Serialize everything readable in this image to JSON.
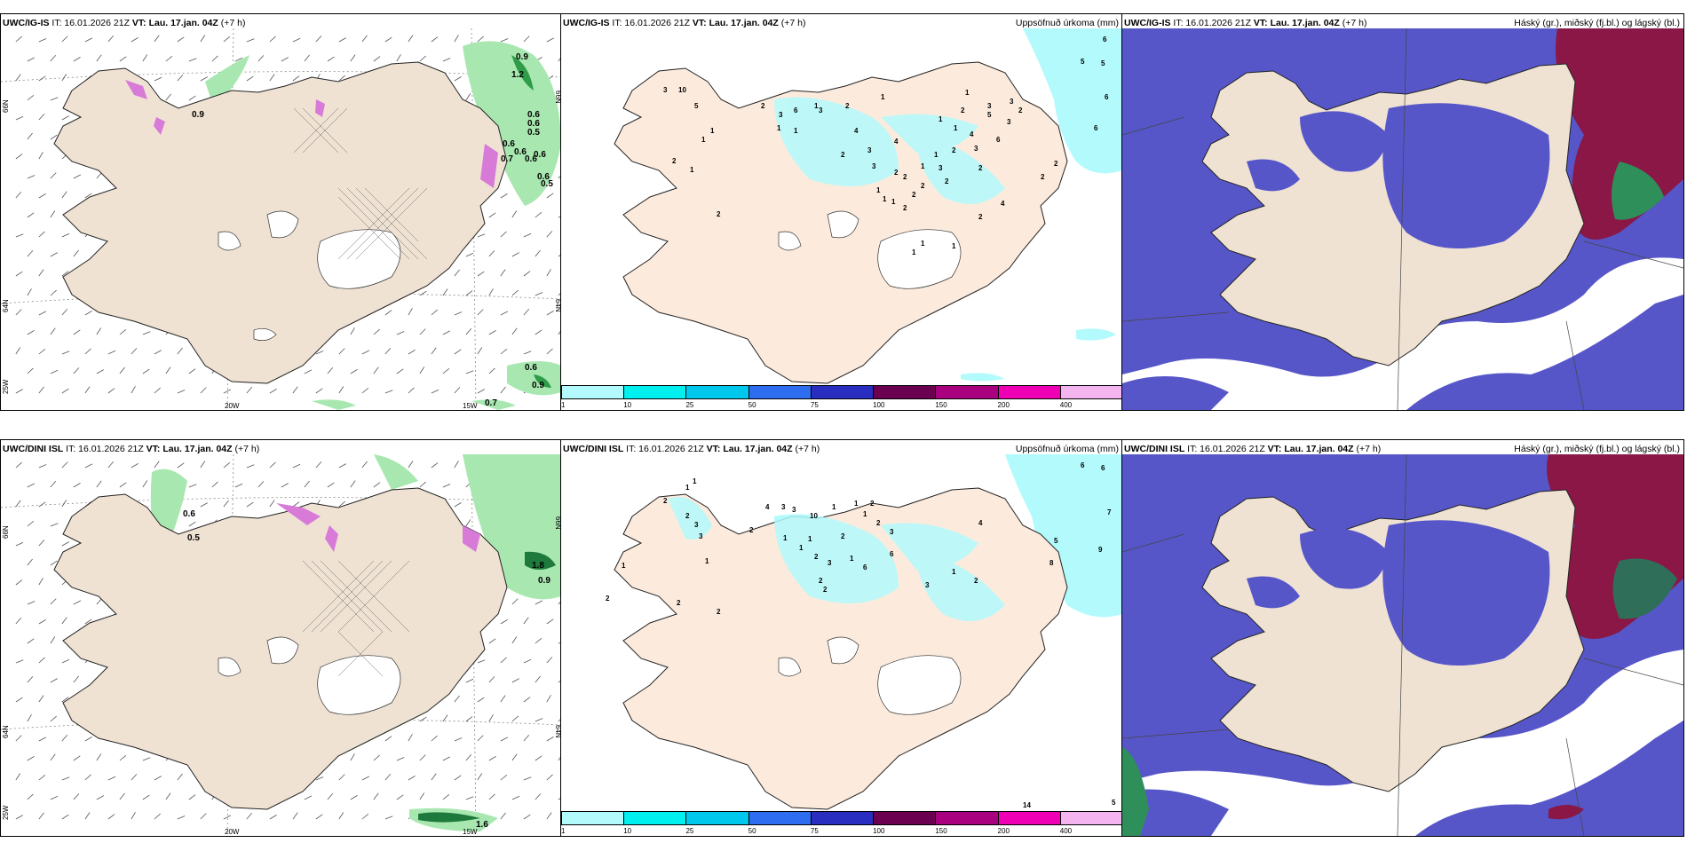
{
  "panels": {
    "p1": {
      "model": "UWC/IG-IS",
      "it": "IT: 16.01.2026 21Z",
      "vt_label": "VT:",
      "vt": "Lau. 17.jan. 04Z",
      "lead": "(+7 h)",
      "right": ""
    },
    "p2": {
      "model": "UWC/IG-IS",
      "it": "IT: 16.01.2026 21Z",
      "vt_label": "VT:",
      "vt": "Lau. 17.jan. 04Z",
      "lead": "(+7 h)",
      "right": "Uppsöfnuð úrkoma (mm)"
    },
    "p3": {
      "model": "UWC/IG-IS",
      "it": "IT: 16.01.2026 21Z",
      "vt_label": "VT:",
      "vt": "Lau. 17.jan. 04Z",
      "lead": "(+7 h)",
      "right": "Háský (gr.), miðský (fj.bl.) og lágský (bl.)"
    },
    "p4": {
      "model": "UWC/DINI ISL",
      "it": "IT: 16.01.2026 21Z",
      "vt_label": "VT:",
      "vt": "Lau. 17.jan. 04Z",
      "lead": "(+7 h)",
      "right": ""
    },
    "p5": {
      "model": "UWC/DINI ISL",
      "it": "IT: 16.01.2026 21Z",
      "vt_label": "VT:",
      "vt": "Lau. 17.jan. 04Z",
      "lead": "(+7 h)",
      "right": "Uppsöfnuð úrkoma (mm)"
    },
    "p6": {
      "model": "UWC/DINI ISL",
      "it": "IT: 16.01.2026 21Z",
      "vt_label": "VT:",
      "vt": "Lau. 17.jan. 04Z",
      "lead": "(+7 h)",
      "right": "Háský (gr.), miðský (fj.bl.) og lágský (bl.)"
    }
  },
  "grid_labels": {
    "lat66": "66N",
    "lat64": "64N",
    "lon20": "20W",
    "lon15": "15W",
    "lon25": "25W"
  },
  "precip_scale": {
    "labels": [
      "1",
      "10",
      "25",
      "50",
      "75",
      "100",
      "150",
      "200",
      "400"
    ],
    "colors": [
      "#b3fafc",
      "#00f0f0",
      "#00c8ec",
      "#2f6df0",
      "#2a2ec0",
      "#6b0050",
      "#a8007e",
      "#f000b4",
      "#f4b4f0"
    ]
  },
  "wind_values_top": [
    "0.9",
    "0.9",
    "1.2",
    "0.6",
    "0.6",
    "0.5",
    "0.6",
    "0.6",
    "0.7",
    "0.6",
    "0.6",
    "0.6",
    "0.5",
    "0.6",
    "0.9",
    "0.7"
  ],
  "wind_values_bottom": [
    "0.6",
    "0.5",
    "1.8",
    "0.9",
    "1.6"
  ],
  "precip_values_top": [
    "3",
    "10",
    "5",
    "2",
    "1",
    "1",
    "1",
    "2",
    "2",
    "3",
    "6",
    "1",
    "1",
    "1",
    "3",
    "2",
    "2",
    "4",
    "1",
    "3",
    "4",
    "3",
    "2",
    "2",
    "2",
    "3",
    "1",
    "1",
    "1",
    "2",
    "2",
    "1",
    "1",
    "2",
    "2",
    "2",
    "4",
    "3",
    "6",
    "3",
    "1",
    "1",
    "1",
    "5",
    "2",
    "3",
    "5",
    "5",
    "6",
    "6",
    "6",
    "2",
    "4",
    "2",
    "3",
    "2",
    "2",
    "1",
    "1",
    "1"
  ],
  "precip_values_bottom": [
    "2",
    "1",
    "1",
    "2",
    "3",
    "3",
    "4",
    "3",
    "3",
    "10",
    "1",
    "1",
    "2",
    "2",
    "1",
    "1",
    "1",
    "2",
    "3",
    "2",
    "2",
    "2",
    "1",
    "1",
    "2",
    "3",
    "6",
    "6",
    "6",
    "6",
    "7",
    "5",
    "8",
    "9",
    "2",
    "2",
    "1",
    "1",
    "2",
    "3",
    "1",
    "4",
    "2",
    "5",
    "14"
  ],
  "colors": {
    "land": "#efe2d3",
    "land_p2": "#fcebdd",
    "cloud_low": "#5c5cca",
    "cloud_high": "#8a1745",
    "precip_green": "#9fe6a8"
  }
}
